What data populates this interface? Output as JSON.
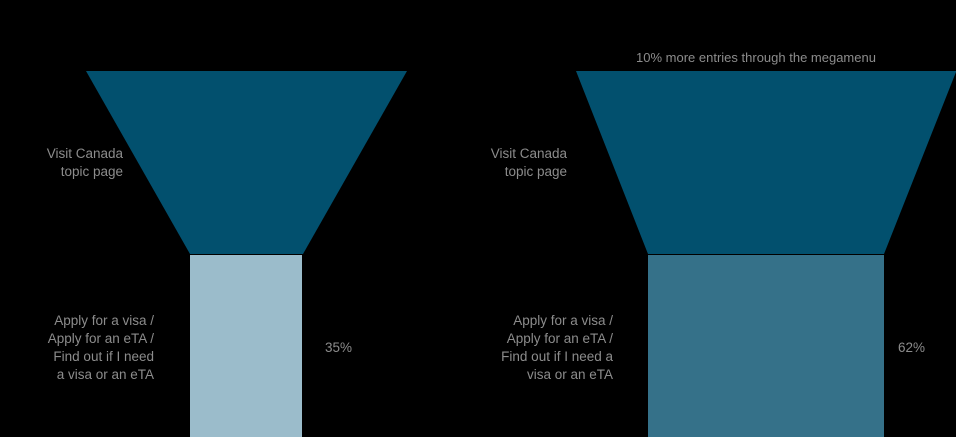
{
  "colors": {
    "background": "#000000",
    "funnel_top": "#02506e",
    "left_bar": "#9bbccb",
    "right_bar": "#357189",
    "text": "#8c8c8c"
  },
  "left_funnel": {
    "top_label": "Visit Canada\ntopic page",
    "bottom_label": "Apply for a visa /\nApply for an eTA /\nFind out if I need\na visa or an eTA",
    "value_label": "35%",
    "value": 35
  },
  "right_funnel": {
    "annotation": "10% more entries through the megamenu",
    "top_label": "Visit Canada\ntopic page",
    "bottom_label": "Apply for a visa /\nApply for an eTA /\nFind out if I need a\nvisa or an eTA",
    "value_label": "62%",
    "value": 62
  }
}
